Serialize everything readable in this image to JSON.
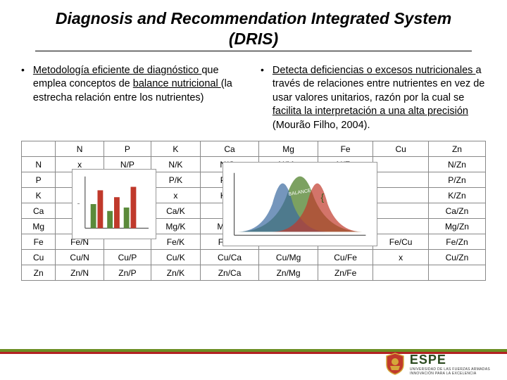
{
  "title": "Diagnosis and Recommendation Integrated System (DRIS)",
  "left_para": {
    "seg1": "Metodología eficiente de diagnóstico ",
    "seg2": "que emplea conceptos de ",
    "seg3": "balance nutricional ",
    "seg4": "(la estrecha relación entre los nutrientes)"
  },
  "right_para": {
    "seg1": "Detecta deficiencias o excesos nutricionales ",
    "seg2": "a través de relaciones entre nutrientes en vez de usar valores unitarios, razón por la cual se ",
    "seg3": "facilita la interpretación a una alta precisión ",
    "seg4": "(Mourão Filho, 2004)."
  },
  "table": {
    "headers": [
      "",
      "N",
      "P",
      "K",
      "Ca",
      "Mg",
      "Fe",
      "Cu",
      "Zn"
    ],
    "rows": [
      [
        "N",
        "x",
        "N/P",
        "N/K",
        "N/Ca",
        "N/Mg",
        "N/Fe",
        "",
        "N/Zn"
      ],
      [
        "P",
        "",
        "",
        "P/K",
        "P/Ca",
        "P/Mg",
        "",
        "",
        "P/Zn"
      ],
      [
        "K",
        "",
        "",
        "x",
        "K/Ca",
        "",
        "",
        "",
        "K/Zn"
      ],
      [
        "Ca",
        "",
        "",
        "Ca/K",
        "x",
        "",
        "",
        "",
        "Ca/Zn"
      ],
      [
        "Mg",
        "",
        "",
        "Mg/K",
        "Mg/Ca",
        "",
        "",
        "",
        "Mg/Zn"
      ],
      [
        "Fe",
        "Fe/N",
        "",
        "Fe/K",
        "Fe/Ca",
        "",
        "",
        "Fe/Cu",
        "Fe/Zn"
      ],
      [
        "Cu",
        "Cu/N",
        "Cu/P",
        "Cu/K",
        "Cu/Ca",
        "Cu/Mg",
        "Cu/Fe",
        "x",
        "Cu/Zn"
      ],
      [
        "Zn",
        "Zn/N",
        "Zn/P",
        "Zn/K",
        "Zn/Ca",
        "Zn/Mg",
        "Zn/Fe",
        "",
        ""
      ]
    ]
  },
  "colors": {
    "stripe_green": "#6b8e23",
    "stripe_red": "#b22222",
    "shield_red": "#c0392b",
    "shield_gold": "#d4a83a"
  },
  "logo": {
    "name": "ESPE",
    "sub": "INNOVACIÓN PARA LA EXCELENCIA",
    "sub2": "UNIVERSIDAD DE LAS FUERZAS ARMADAS"
  },
  "chart2_label": "BALANCE"
}
